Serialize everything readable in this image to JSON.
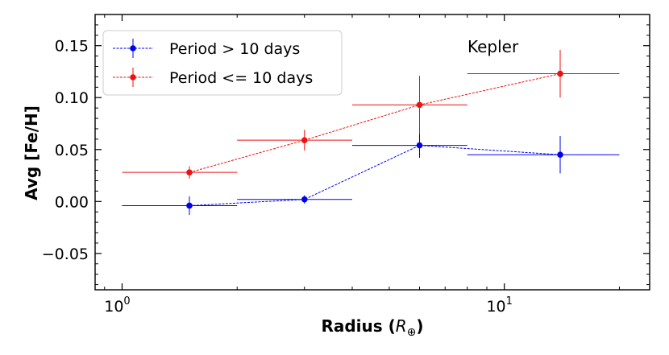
{
  "chart_data": {
    "type": "scatter",
    "x_scale": "log",
    "xlim": [
      0.85,
      24
    ],
    "ylim": [
      -0.085,
      0.18
    ],
    "xlabel": "Radius (",
    "xlabel_symbol": "R",
    "xlabel_subscript": "⊕",
    "xlabel_close": ")",
    "ylabel": "Avg [Fe/H]",
    "annotation": "Kepler",
    "x_ticks": [
      {
        "value": 1,
        "base": "10",
        "exp": "0"
      },
      {
        "value": 10,
        "base": "10",
        "exp": "1"
      }
    ],
    "y_ticks": [
      {
        "value": -0.05,
        "label": "−0.05"
      },
      {
        "value": 0.0,
        "label": "0.00"
      },
      {
        "value": 0.05,
        "label": "0.05"
      },
      {
        "value": 0.1,
        "label": "0.10"
      },
      {
        "value": 0.15,
        "label": "0.15"
      }
    ],
    "legend": {
      "position": "top-left"
    },
    "series": [
      {
        "name": "Period  > 10 days",
        "color": "#0000ee",
        "points": [
          {
            "x": 1.5,
            "y": -0.004,
            "xmin": 1.0,
            "xmax": 2.0,
            "yerr": 0.009
          },
          {
            "x": 3.0,
            "y": 0.002,
            "xmin": 2.0,
            "xmax": 4.0,
            "yerr": 0.004
          },
          {
            "x": 6.0,
            "y": 0.054,
            "xmin": 4.0,
            "xmax": 8.0,
            "yerr": 0.012
          },
          {
            "x": 14.0,
            "y": 0.045,
            "xmin": 8.0,
            "xmax": 20.0,
            "yerr": 0.018
          }
        ]
      },
      {
        "name": "Period  <= 10 days",
        "color": "#ee1111",
        "points": [
          {
            "x": 1.5,
            "y": 0.028,
            "xmin": 1.0,
            "xmax": 2.0,
            "yerr": 0.006
          },
          {
            "x": 3.0,
            "y": 0.059,
            "xmin": 2.0,
            "xmax": 4.0,
            "yerr": 0.01
          },
          {
            "x": 6.0,
            "y": 0.093,
            "xmin": 4.0,
            "xmax": 8.0,
            "yerr": 0.028
          },
          {
            "x": 14.0,
            "y": 0.123,
            "xmin": 8.0,
            "xmax": 20.0,
            "yerr": 0.023
          }
        ]
      }
    ]
  }
}
